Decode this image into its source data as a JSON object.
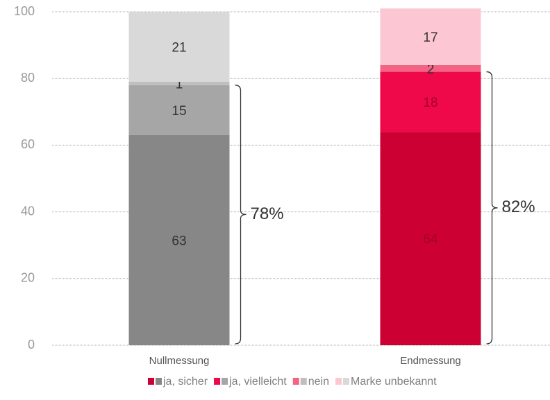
{
  "chart_data": {
    "type": "stacked_bar",
    "categories": [
      "Nullmessung",
      "Endmessung"
    ],
    "series": [
      {
        "name": "ja, sicher",
        "colors": [
          "#878787",
          "#cc0033"
        ],
        "values": [
          63,
          64
        ]
      },
      {
        "name": "ja, vielleicht",
        "colors": [
          "#a6a6a6",
          "#f0094a"
        ],
        "values": [
          15,
          18
        ]
      },
      {
        "name": "nein",
        "colors": [
          "#bfbfbf",
          "#f26384"
        ],
        "values": [
          1,
          2
        ]
      },
      {
        "name": "Marke unbekannt",
        "colors": [
          "#d9d9d9",
          "#fcc7d3"
        ],
        "values": [
          21,
          17
        ]
      }
    ],
    "annotations": [
      {
        "text": "78%",
        "value": 78,
        "category": 0
      },
      {
        "text": "82%",
        "value": 82,
        "category": 1
      }
    ],
    "ylim": [
      0,
      100
    ],
    "yticks": [
      0,
      20,
      40,
      60,
      80,
      100
    ],
    "grid": true
  }
}
